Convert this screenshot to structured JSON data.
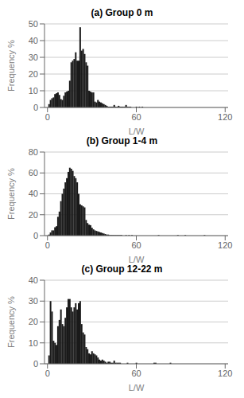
{
  "chart_data": [
    {
      "type": "bar",
      "title": "(a) Group 0 m",
      "xlabel": "L/W",
      "ylabel": "Frequency %",
      "x": [
        0,
        1,
        2,
        3,
        4,
        5,
        6,
        7,
        8,
        9,
        10,
        11,
        12,
        13,
        14,
        15,
        16,
        17,
        18,
        19,
        20,
        21,
        22,
        23,
        24,
        25,
        26,
        27,
        28,
        29,
        30,
        31,
        32,
        33,
        34,
        35,
        36,
        37,
        38,
        39,
        40,
        41,
        42,
        43,
        44,
        45,
        46,
        47,
        48,
        49,
        50,
        51,
        52,
        53,
        54,
        55,
        56,
        57,
        58,
        59,
        60,
        61,
        62,
        63,
        64,
        65,
        66,
        67,
        68,
        69,
        70,
        71,
        72,
        73,
        74,
        75,
        76,
        77,
        78,
        79,
        80,
        81,
        82,
        83,
        84,
        85,
        86,
        87,
        88,
        89,
        90,
        91,
        92,
        93,
        94,
        95,
        96,
        97,
        98,
        99,
        100,
        101,
        102,
        103,
        104,
        105,
        106,
        107,
        108,
        109,
        110,
        111,
        112,
        113,
        114,
        115,
        116,
        117,
        118,
        119,
        120
      ],
      "values": [
        0,
        2.0,
        4.5,
        5.5,
        6.0,
        8.0,
        8.5,
        9.0,
        7.5,
        5.0,
        4.5,
        7.0,
        9.0,
        9.5,
        10.0,
        16.0,
        27.0,
        28.0,
        29.0,
        33.0,
        28.0,
        28.0,
        48.0,
        34.0,
        35.0,
        32.0,
        27.0,
        25.0,
        10.0,
        9.5,
        9.0,
        9.0,
        3.5,
        3.0,
        4.5,
        3.5,
        3.0,
        2.5,
        2.0,
        1.5,
        1.0,
        0.5,
        0.5,
        0.5,
        0.5,
        1.5,
        0.5,
        0.5,
        1.0,
        0.5,
        0.5,
        0.5,
        0.5,
        1.5,
        0.5,
        0.5,
        0.5,
        0,
        0,
        0,
        0.5,
        0,
        0.5,
        0,
        0.5,
        0,
        0,
        0,
        0,
        0,
        0,
        0,
        0,
        0,
        0,
        0,
        0,
        0,
        0,
        0,
        0,
        0,
        0,
        0,
        0,
        0,
        0,
        0,
        0,
        0,
        0,
        0,
        0,
        0,
        0,
        0,
        0,
        0,
        0,
        0,
        0,
        0,
        0,
        0,
        0,
        0,
        0,
        0,
        0,
        0,
        0,
        0,
        0,
        0,
        0,
        0,
        0,
        0,
        0,
        0,
        0
      ],
      "color": "#1a1a1a",
      "xlim": [
        -2,
        122
      ],
      "xticks": [
        0,
        60,
        120
      ],
      "ylim": [
        0,
        50
      ],
      "yticks": [
        0,
        10,
        20,
        30,
        40,
        50
      ],
      "grid": true
    },
    {
      "type": "bar",
      "title": "(b) Group 1-4 m",
      "xlabel": "L/W",
      "ylabel": "Frequency %",
      "x": [
        0,
        1,
        2,
        3,
        4,
        5,
        6,
        7,
        8,
        9,
        10,
        11,
        12,
        13,
        14,
        15,
        16,
        17,
        18,
        19,
        20,
        21,
        22,
        23,
        24,
        25,
        26,
        27,
        28,
        29,
        30,
        31,
        32,
        33,
        34,
        35,
        36,
        37,
        38,
        39,
        40,
        41,
        42,
        43,
        44,
        45,
        46,
        47,
        48,
        49,
        50,
        51,
        52,
        53,
        54,
        55,
        56,
        57,
        58,
        59,
        60,
        61,
        62,
        63,
        64,
        65,
        66,
        67,
        68,
        69,
        70,
        71,
        72,
        73,
        74,
        75,
        76,
        77,
        78,
        79,
        80,
        81,
        82,
        83,
        84,
        85,
        86,
        87,
        88,
        89,
        90,
        91,
        92,
        93,
        94,
        95,
        96,
        97,
        98,
        99,
        100,
        101,
        102,
        103,
        104,
        105,
        106,
        107,
        108,
        109,
        110,
        111,
        112,
        113,
        114,
        115,
        116,
        117,
        118,
        119,
        120
      ],
      "values": [
        0,
        1.0,
        3.0,
        5.0,
        5.0,
        8.0,
        9.0,
        18.0,
        23.0,
        33.0,
        40.0,
        45.0,
        51.0,
        55.0,
        61.0,
        65.0,
        64.0,
        62.0,
        57.0,
        55.0,
        51.0,
        40.0,
        30.0,
        29.0,
        28.0,
        27.0,
        15.0,
        12.0,
        10.5,
        10.0,
        7.5,
        6.0,
        5.0,
        4.5,
        4.0,
        3.5,
        3.0,
        2.5,
        2.0,
        1.5,
        1.0,
        1.0,
        0.5,
        0.5,
        0.5,
        0.5,
        0.5,
        0.5,
        0.5,
        0.5,
        0.5,
        0,
        0,
        0.5,
        0,
        0.5,
        0,
        0.5,
        0,
        0,
        0,
        0,
        0,
        0,
        0,
        0,
        0,
        0,
        0,
        0,
        0,
        0,
        0,
        0,
        0,
        0.5,
        0,
        0,
        0,
        0,
        0,
        0,
        0,
        0,
        0,
        0,
        0,
        0,
        0.5,
        0,
        0,
        0,
        0,
        0.5,
        0,
        0,
        0,
        0,
        0,
        0,
        0,
        0,
        0,
        0,
        0,
        0,
        0.5,
        0,
        0,
        0,
        0,
        0,
        0,
        0,
        0,
        0,
        0,
        0,
        0,
        0,
        0
      ],
      "color": "#1a1a1a",
      "xlim": [
        -2,
        122
      ],
      "xticks": [
        0,
        60,
        120
      ],
      "ylim": [
        0,
        80
      ],
      "yticks": [
        0,
        20,
        40,
        60,
        80
      ],
      "grid": true
    },
    {
      "type": "bar",
      "title": "(c) Group 12-22 m",
      "xlabel": "L/W",
      "ylabel": "Frequency %",
      "x": [
        0,
        1,
        2,
        3,
        4,
        5,
        6,
        7,
        8,
        9,
        10,
        11,
        12,
        13,
        14,
        15,
        16,
        17,
        18,
        19,
        20,
        21,
        22,
        23,
        24,
        25,
        26,
        27,
        28,
        29,
        30,
        31,
        32,
        33,
        34,
        35,
        36,
        37,
        38,
        39,
        40,
        41,
        42,
        43,
        44,
        45,
        46,
        47,
        48,
        49,
        50,
        51,
        52,
        53,
        54,
        55,
        56,
        57,
        58,
        59,
        60,
        61,
        62,
        63,
        64,
        65,
        66,
        67,
        68,
        69,
        70,
        71,
        72,
        73,
        74,
        75,
        76,
        77,
        78,
        79,
        80,
        81,
        82,
        83,
        84,
        85,
        86,
        87,
        88,
        89,
        90,
        91,
        92,
        93,
        94,
        95,
        96,
        97,
        98,
        99,
        100,
        101,
        102,
        103,
        104,
        105,
        106,
        107,
        108,
        109,
        110,
        111,
        112,
        113,
        114,
        115,
        116,
        117,
        118,
        119,
        120
      ],
      "values": [
        0,
        4.0,
        30.0,
        25.0,
        11.0,
        10.0,
        9.0,
        18.0,
        21.0,
        26.0,
        19.0,
        18.0,
        22.0,
        27.0,
        31.0,
        31.0,
        27.0,
        25.0,
        27.0,
        29.0,
        26.0,
        29.0,
        30.0,
        19.0,
        15.0,
        14.0,
        8.0,
        7.0,
        5.0,
        4.5,
        6.0,
        5.0,
        4.5,
        4.0,
        3.0,
        2.0,
        1.5,
        2.0,
        1.5,
        1.0,
        0.5,
        1.0,
        1.0,
        0.5,
        0.5,
        1.5,
        0.5,
        0.5,
        0.5,
        0.5,
        0,
        0,
        0,
        0,
        0.5,
        0,
        0,
        0,
        0,
        0,
        0.5,
        0,
        0,
        0,
        0,
        0,
        0,
        0,
        0,
        0,
        0,
        0,
        0.5,
        0.5,
        0,
        0,
        0,
        0,
        0,
        0,
        0,
        0,
        0,
        0.5,
        0,
        0,
        0,
        0,
        0,
        0,
        0,
        0,
        0,
        0,
        0,
        0,
        0,
        0,
        0,
        0,
        0,
        0,
        0,
        0,
        0,
        0,
        0,
        0,
        0,
        0,
        0,
        0,
        0,
        0,
        0,
        0,
        0,
        0,
        0,
        0,
        0
      ],
      "color": "#1a1a1a",
      "xlim": [
        -2,
        122
      ],
      "xticks": [
        0,
        60,
        120
      ],
      "ylim": [
        0,
        40
      ],
      "yticks": [
        0,
        10,
        20,
        30,
        40
      ],
      "grid": true
    }
  ]
}
